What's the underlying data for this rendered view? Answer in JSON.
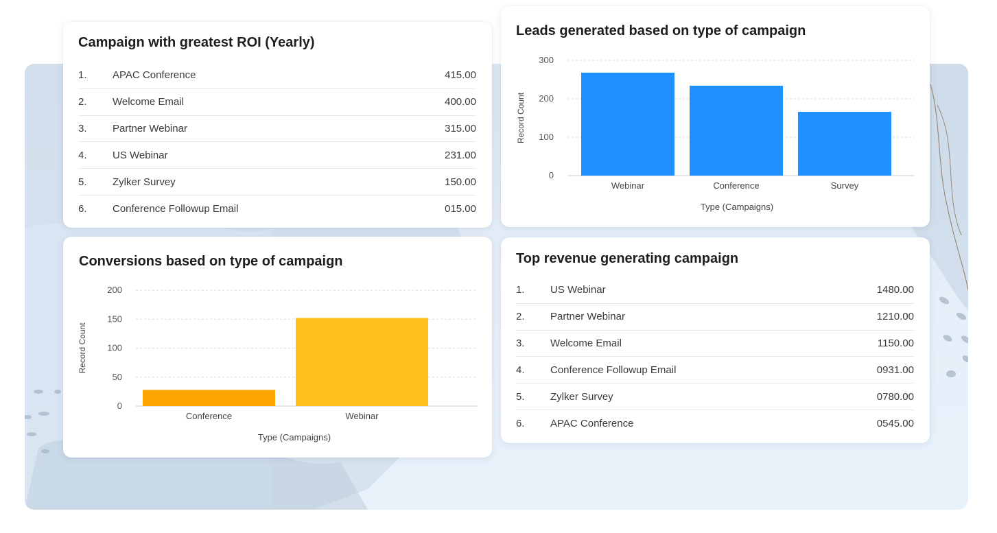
{
  "roi_card": {
    "title": "Campaign with greatest ROI (Yearly)",
    "rows": [
      {
        "rank": "1.",
        "name": "APAC Conference",
        "value": "415.00"
      },
      {
        "rank": "2.",
        "name": "Welcome Email",
        "value": "400.00"
      },
      {
        "rank": "3.",
        "name": "Partner Webinar",
        "value": "315.00"
      },
      {
        "rank": "4.",
        "name": "US Webinar",
        "value": "231.00"
      },
      {
        "rank": "5.",
        "name": "Zylker Survey",
        "value": "150.00"
      },
      {
        "rank": "6.",
        "name": "Conference Followup Email",
        "value": "015.00"
      }
    ]
  },
  "revenue_card": {
    "title": "Top revenue generating campaign",
    "rows": [
      {
        "rank": "1.",
        "name": "US Webinar",
        "value": "1480.00"
      },
      {
        "rank": "2.",
        "name": "Partner Webinar",
        "value": "1210.00"
      },
      {
        "rank": "3.",
        "name": "Welcome Email",
        "value": "1150.00"
      },
      {
        "rank": "4.",
        "name": "Conference Followup Email",
        "value": "0931.00"
      },
      {
        "rank": "5.",
        "name": "Zylker Survey",
        "value": "0780.00"
      },
      {
        "rank": "6.",
        "name": "APAC Conference",
        "value": "0545.00"
      }
    ]
  },
  "chart_data": [
    {
      "type": "bar",
      "title": "Leads generated based on type of campaign",
      "categories": [
        "Webinar",
        "Conference",
        "Survey"
      ],
      "values": [
        268,
        234,
        166
      ],
      "xlabel": "Type (Campaigns)",
      "ylabel": "Record Count",
      "ylim": [
        0,
        300
      ],
      "yticks": [
        0,
        100,
        200,
        300
      ],
      "grid": true,
      "colors": [
        "#1e90ff",
        "#1e90ff",
        "#1e90ff"
      ]
    },
    {
      "type": "bar",
      "title": "Conversions based on type of campaign",
      "categories": [
        "Conference",
        "Webinar"
      ],
      "values": [
        28,
        152
      ],
      "xlabel": "Type (Campaigns)",
      "ylabel": "Record Count",
      "ylim": [
        0,
        200
      ],
      "yticks": [
        0,
        50,
        100,
        150,
        200
      ],
      "grid": true,
      "colors": [
        "#ffa500",
        "#ffbe1a"
      ]
    }
  ]
}
